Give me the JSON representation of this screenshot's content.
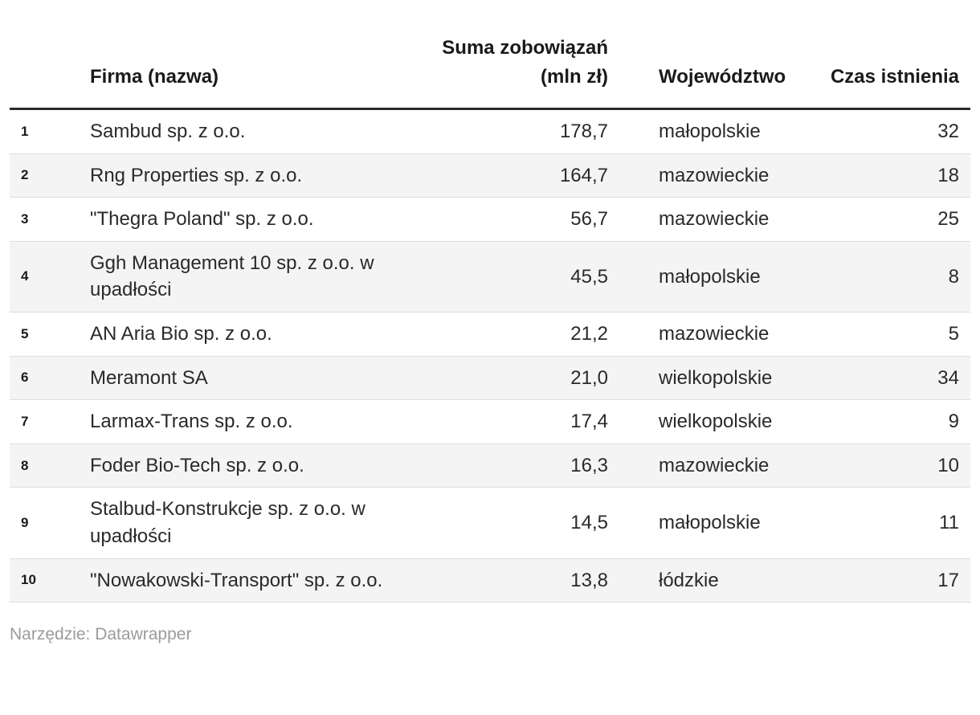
{
  "chart_data": {
    "type": "table",
    "columns": [
      {
        "key": "rank",
        "label": "",
        "align": "left"
      },
      {
        "key": "name",
        "label": "Firma (nazwa)",
        "align": "left"
      },
      {
        "key": "sum",
        "label": "Suma zobowiązań (mln zł)",
        "align": "right"
      },
      {
        "key": "region",
        "label": "Województwo",
        "align": "left"
      },
      {
        "key": "age",
        "label": "Czas istnienia",
        "align": "right"
      }
    ],
    "rows": [
      {
        "rank": "1",
        "name": "Sambud sp. z o.o.",
        "sum": "178,7",
        "region": "małopolskie",
        "age": "32"
      },
      {
        "rank": "2",
        "name": "Rng Properties sp. z o.o.",
        "sum": "164,7",
        "region": "mazowieckie",
        "age": "18"
      },
      {
        "rank": "3",
        "name": "\"Thegra Poland\" sp. z o.o.",
        "sum": "56,7",
        "region": "mazowieckie",
        "age": "25"
      },
      {
        "rank": "4",
        "name": "Ggh Management 10 sp. z o.o. w upadłości",
        "sum": "45,5",
        "region": "małopolskie",
        "age": "8"
      },
      {
        "rank": "5",
        "name": "AN Aria Bio sp. z o.o.",
        "sum": "21,2",
        "region": "mazowieckie",
        "age": "5"
      },
      {
        "rank": "6",
        "name": "Meramont SA",
        "sum": "21,0",
        "region": "wielkopolskie",
        "age": "34"
      },
      {
        "rank": "7",
        "name": "Larmax-Trans sp. z o.o.",
        "sum": "17,4",
        "region": "wielkopolskie",
        "age": "9"
      },
      {
        "rank": "8",
        "name": "Foder Bio-Tech sp. z o.o.",
        "sum": "16,3",
        "region": "mazowieckie",
        "age": "10"
      },
      {
        "rank": "9",
        "name": "Stalbud-Konstrukcje sp. z o.o. w upadłości",
        "sum": "14,5",
        "region": "małopolskie",
        "age": "11"
      },
      {
        "rank": "10",
        "name": "\"Nowakowski-Transport\" sp. z o.o.",
        "sum": "13,8",
        "region": "łódzkie",
        "age": "17"
      }
    ],
    "footnote": "Narzędzie: Datawrapper",
    "layout_hints": {
      "striped_rows": "even",
      "header_rule": true
    }
  },
  "colors": {
    "stripe": "#f4f4f4",
    "row_divider": "#dedede",
    "header_rule": "#2b2b2b",
    "text": "#2a2a2a",
    "muted_text": "#9b9b9b",
    "background": "#ffffff"
  },
  "footer": {
    "text": "Narzędzie: Datawrapper"
  }
}
